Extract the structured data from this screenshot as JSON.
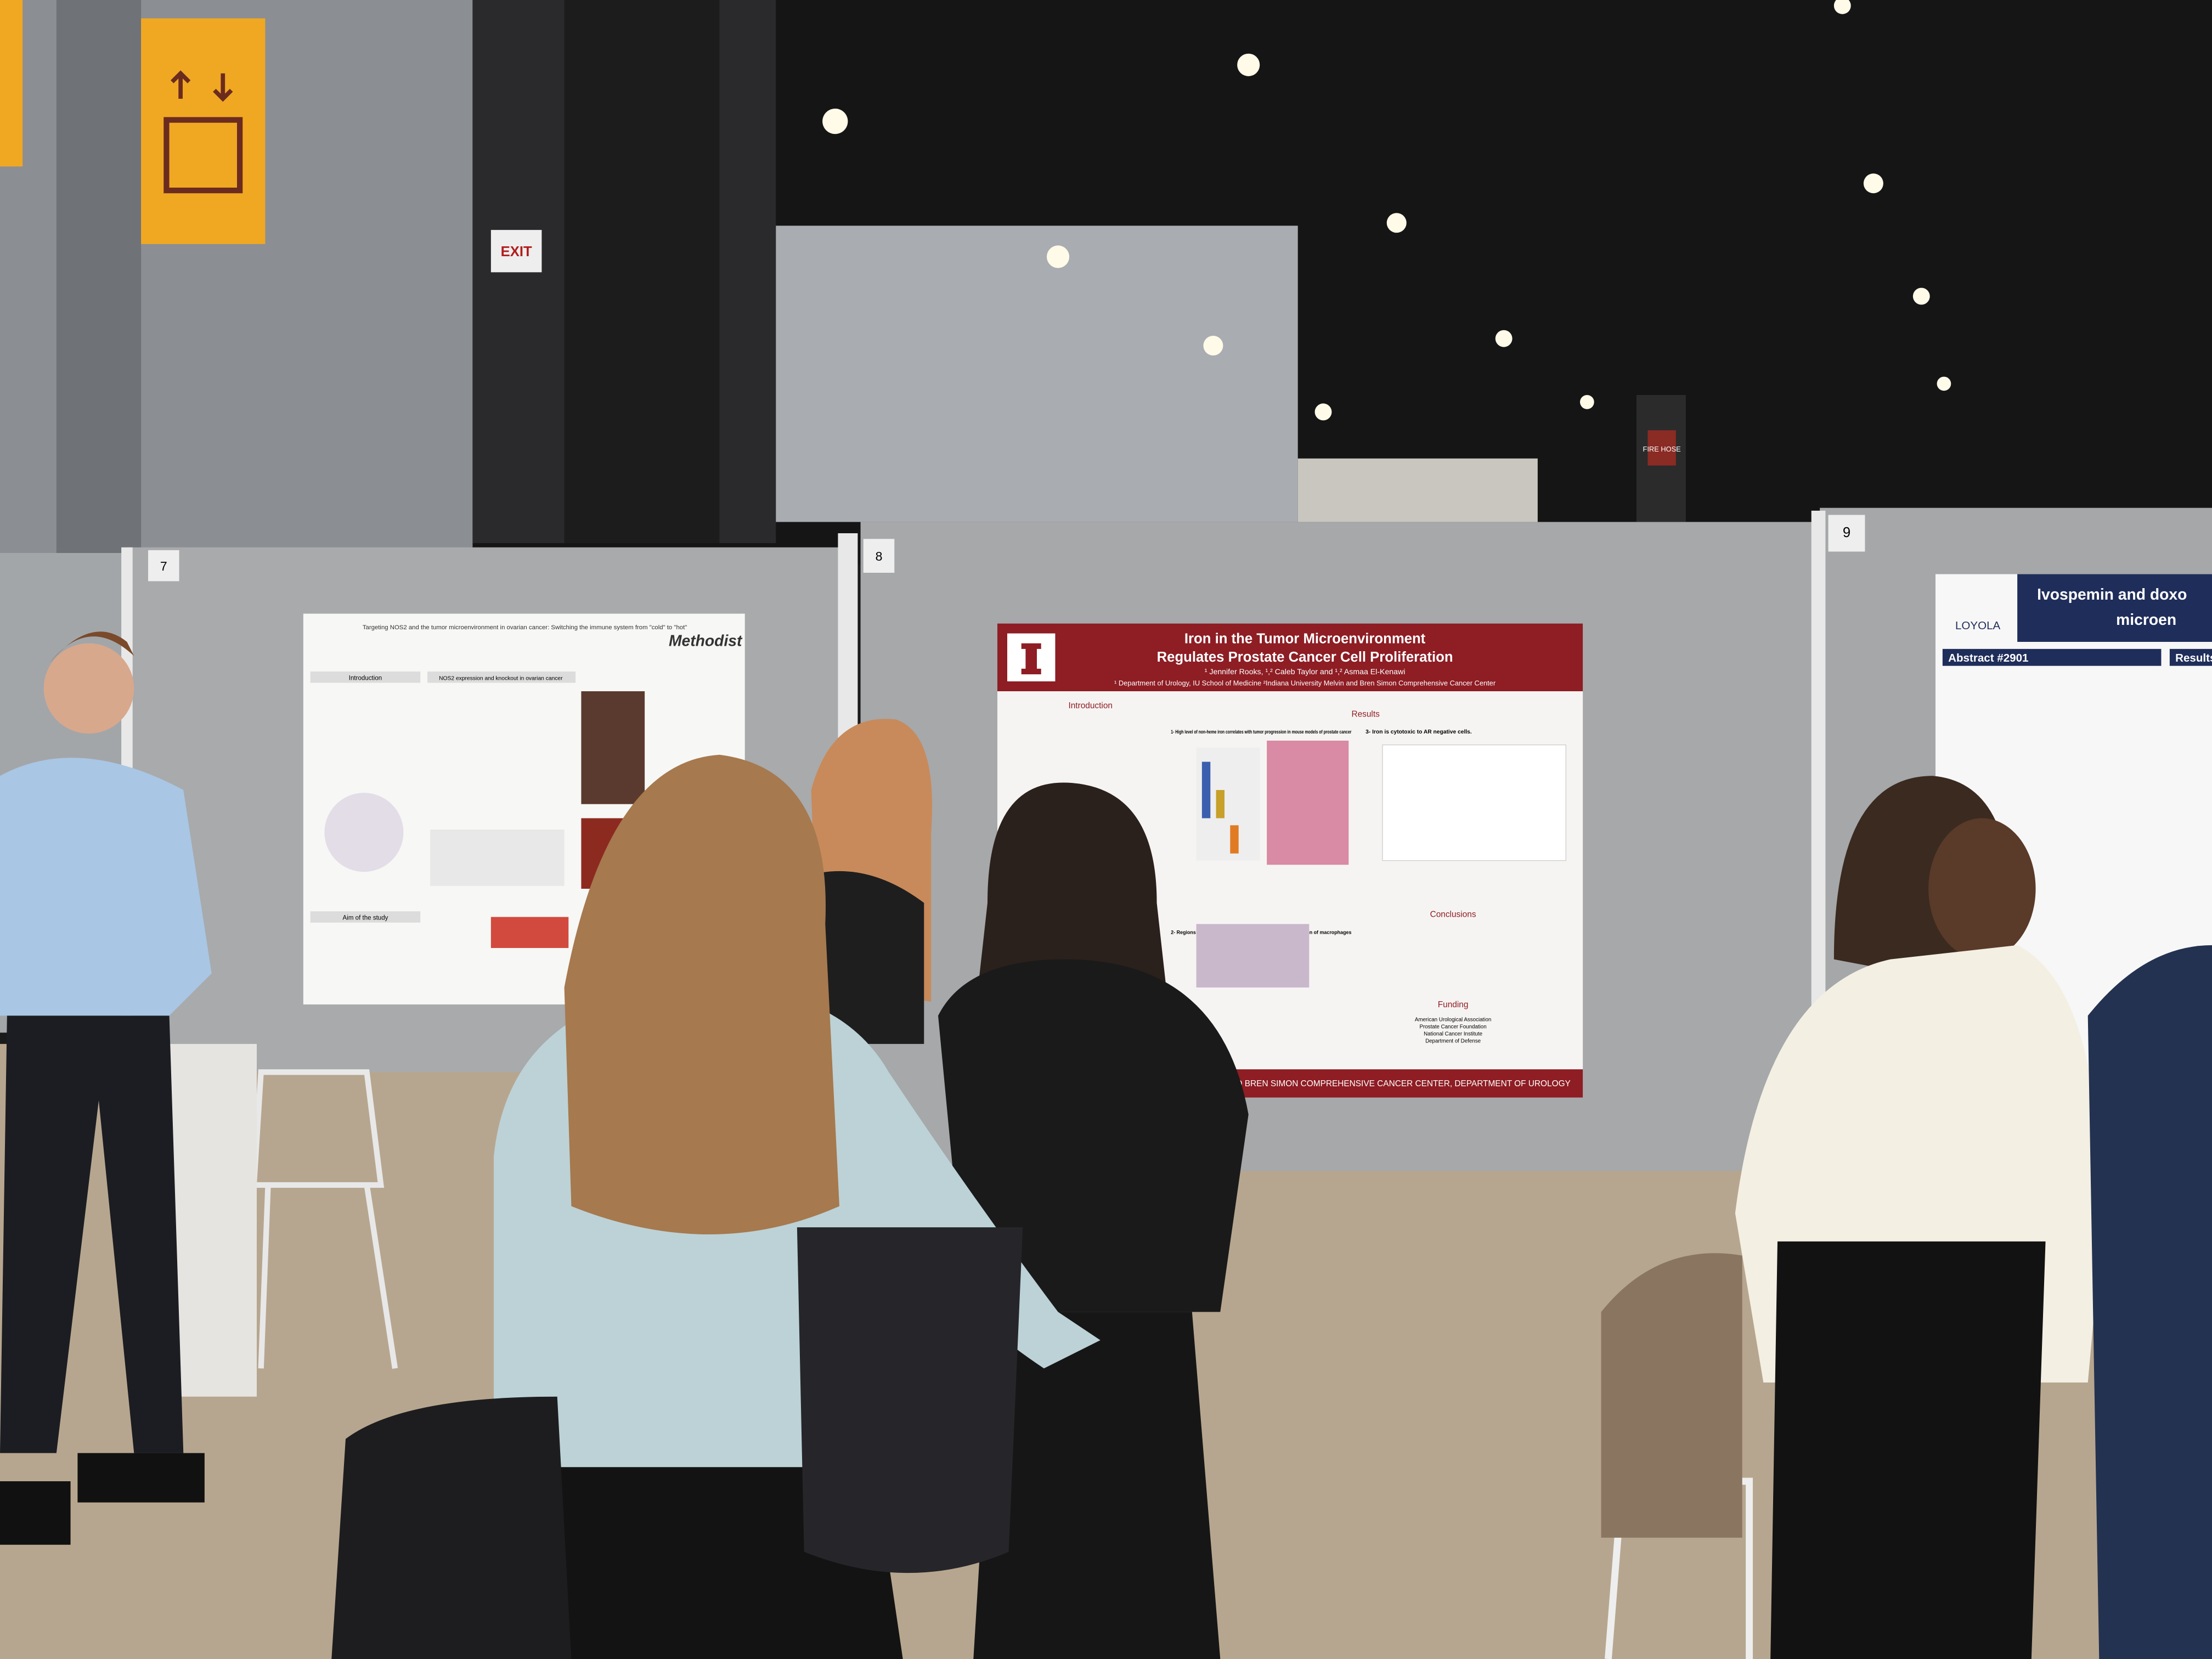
{
  "signs": {
    "exit": "EXIT",
    "fire_hose": "FIRE HOSE"
  },
  "boards": [
    "7",
    "8",
    "9"
  ],
  "posters": {
    "left": {
      "title": "Targeting NOS2 and the tumor microenvironment in ovarian cancer: Switching the immune system from \"cold\" to \"hot\"",
      "logo": "Methodist",
      "sections": [
        "Introduction",
        "NOS2 expression and knockout in ovarian cancer",
        "Aim of the study"
      ]
    },
    "center": {
      "title_line1": "Iron in the Tumor Microenvironment",
      "title_line2": "Regulates Prostate Cancer Cell Proliferation",
      "authors": "¹ Jennifer Rooks, ¹,² Caleb Taylor and ¹,² Asmaa El-Kenawi",
      "affiliation": "¹ Department of Urology, IU School of Medicine ²Indiana University Melvin and Bren Simon Comprehensive Cancer Center",
      "sections": [
        "Introduction",
        "Results",
        "Conclusions",
        "Funding"
      ],
      "subheadings": [
        "1- High level of non-heme iron correlates with tumor progression in mouse models of prostate cancer",
        "2- Regions with high iron abundance exhibit high expression of macrophages",
        "3- Iron is cytotoxic to AR negative cells."
      ],
      "funding": [
        "American Urological Association",
        "Prostate Cancer Foundation",
        "National Cancer Institute",
        "Department of Defense"
      ],
      "footer": "VIN AND BREN SIMON COMPREHENSIVE CANCER CENTER, DEPARTMENT OF UROLOGY"
    },
    "right": {
      "title_line1": "Ivospemin and doxo",
      "title_line2": "microen",
      "logo": "LOYOLA",
      "sections": [
        "Abstract #2901",
        "Results"
      ]
    }
  }
}
